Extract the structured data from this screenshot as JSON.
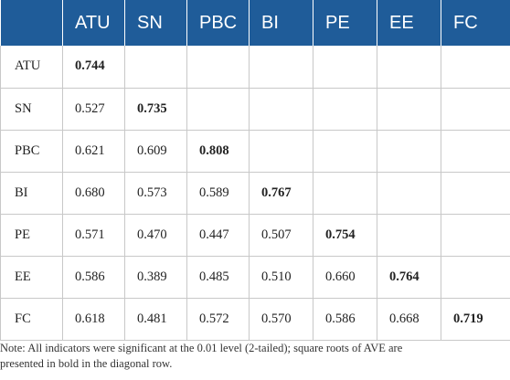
{
  "table": {
    "headers": [
      "",
      "ATU",
      "SN",
      "PBC",
      "BI",
      "PE",
      "EE",
      "FC"
    ],
    "rows": [
      {
        "label": "ATU",
        "cells": [
          "0.744",
          "",
          "",
          "",
          "",
          "",
          ""
        ]
      },
      {
        "label": "SN",
        "cells": [
          "0.527",
          "0.735",
          "",
          "",
          "",
          "",
          ""
        ]
      },
      {
        "label": "PBC",
        "cells": [
          "0.621",
          "0.609",
          "0.808",
          "",
          "",
          "",
          ""
        ]
      },
      {
        "label": "BI",
        "cells": [
          "0.680",
          "0.573",
          "0.589",
          "0.767",
          "",
          "",
          ""
        ]
      },
      {
        "label": "PE",
        "cells": [
          "0.571",
          "0.470",
          "0.447",
          "0.507",
          "0.754",
          "",
          ""
        ]
      },
      {
        "label": "EE",
        "cells": [
          "0.586",
          "0.389",
          "0.485",
          "0.510",
          "0.660",
          "0.764",
          ""
        ]
      },
      {
        "label": "FC",
        "cells": [
          "0.618",
          "0.481",
          "0.572",
          "0.570",
          "0.586",
          "0.668",
          "0.719"
        ]
      }
    ]
  },
  "note": {
    "line1": "Note: All indicators were significant at the 0.01 level (2-tailed); square roots of AVE are",
    "line2": "presented in bold in the diagonal row."
  },
  "colors": {
    "header_background": "#1f5c99",
    "header_text": "#ffffff",
    "grid_line": "#c8c8c8"
  }
}
